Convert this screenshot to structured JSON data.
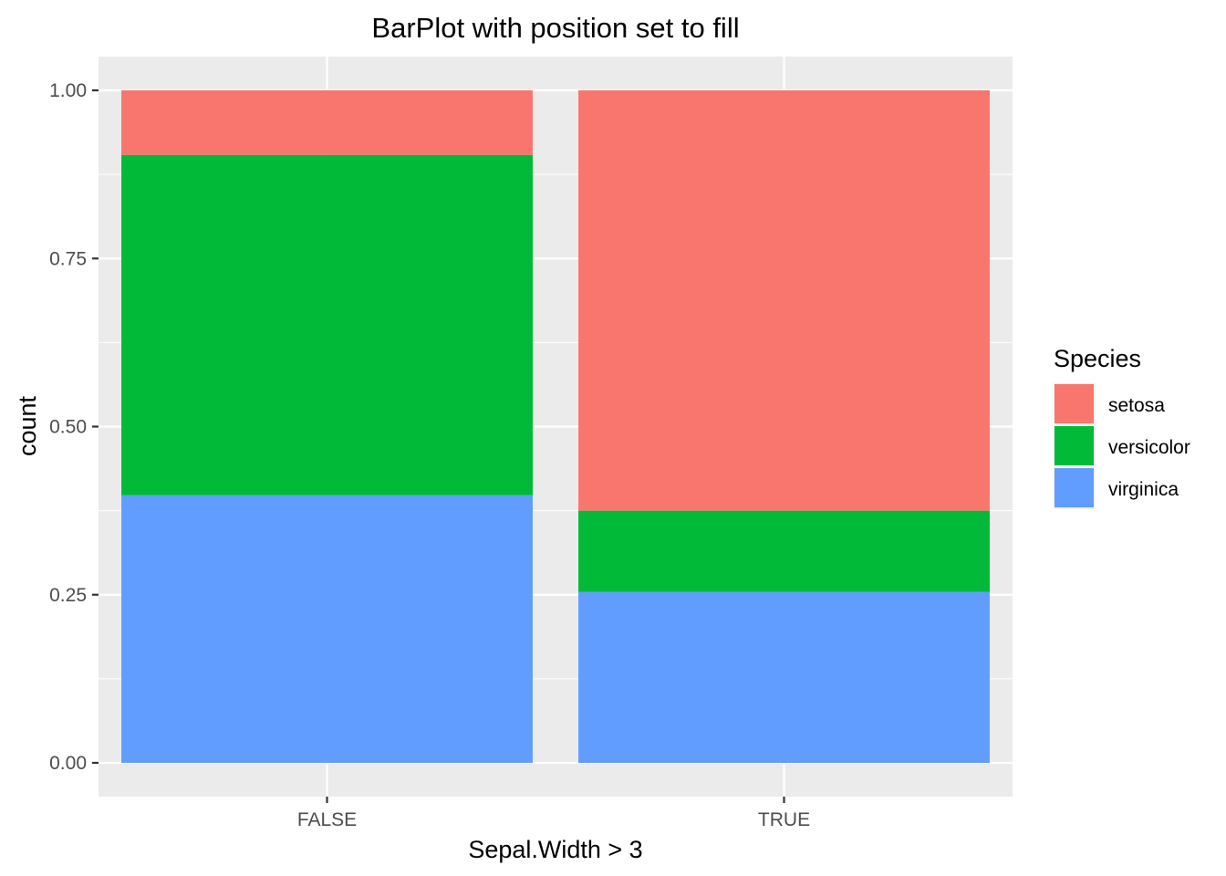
{
  "chart_data": {
    "type": "bar",
    "stacking": "fill",
    "title": "BarPlot with position set to fill",
    "xlabel": "Sepal.Width > 3",
    "ylabel": "count",
    "categories": [
      "FALSE",
      "TRUE"
    ],
    "series": [
      {
        "name": "setosa",
        "color": "#F8766D",
        "values": [
          0.096,
          0.625
        ]
      },
      {
        "name": "versicolor",
        "color": "#00BA38",
        "values": [
          0.506,
          0.121
        ]
      },
      {
        "name": "virginica",
        "color": "#619CFF",
        "values": [
          0.398,
          0.254
        ]
      }
    ],
    "ylim": [
      0,
      1
    ],
    "yticks": [
      "0.00",
      "0.25",
      "0.50",
      "0.75",
      "1.00"
    ],
    "grid": true,
    "panel_background": "#EBEBEB",
    "legend": {
      "title": "Species",
      "position": "right"
    }
  }
}
